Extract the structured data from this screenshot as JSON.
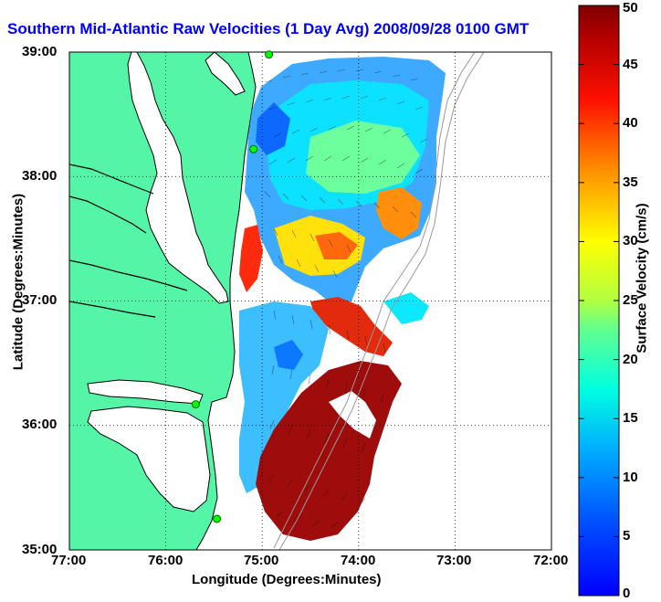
{
  "title": "Southern Mid-Atlantic Raw Velocities (1 Day Avg) 2008/09/28 0100 GMT",
  "map": {
    "xlabel": "Longitude (Degrees:Minutes)",
    "ylabel": "Latitude (Degrees:Minutes)",
    "lon_ticks": [
      "77:00",
      "76:00",
      "75:00",
      "74:00",
      "73:00",
      "72:00"
    ],
    "lat_ticks": [
      "39:00",
      "38:00",
      "37:00",
      "36:00",
      "35:00"
    ],
    "lon_range": [
      -77,
      -72
    ],
    "lat_range": [
      35,
      39
    ],
    "land_color": "#55f5a8",
    "coast_color": "#000000"
  },
  "colorbar": {
    "label": "Surface Velocity (cm/s)",
    "ticks": [
      "0",
      "5",
      "10",
      "15",
      "20",
      "25",
      "30",
      "35",
      "40",
      "45",
      "50"
    ],
    "range": [
      0,
      50
    ],
    "colormap": "jet"
  },
  "stations": [
    {
      "lon": -74.93,
      "lat": 38.98
    },
    {
      "lon": -75.09,
      "lat": 38.22
    },
    {
      "lon": -75.69,
      "lat": 36.17
    },
    {
      "lon": -75.47,
      "lat": 35.25
    }
  ]
}
